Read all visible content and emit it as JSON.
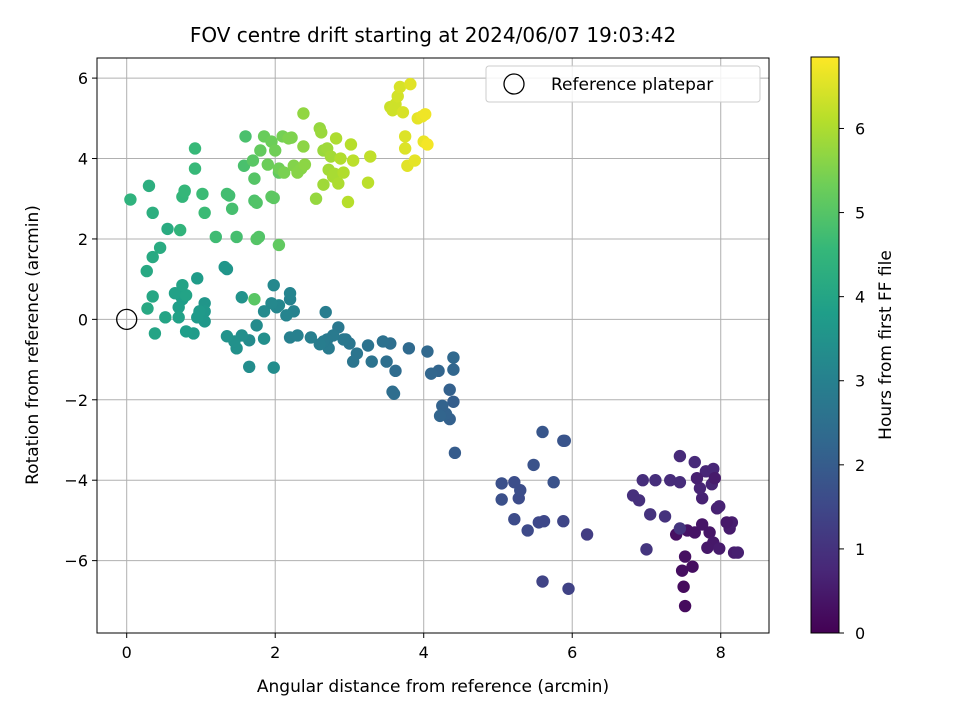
{
  "chart_data": {
    "type": "scatter",
    "title": "FOV centre drift starting at 2024/06/07 19:03:42",
    "xlabel": "Angular distance from reference (arcmin)",
    "ylabel": "Rotation from reference (arcmin)",
    "xlim": [
      -0.4,
      8.65
    ],
    "ylim": [
      -7.8,
      6.5
    ],
    "xticks": [
      0,
      2,
      4,
      6,
      8
    ],
    "yticks": [
      -6,
      -4,
      -2,
      0,
      2,
      4,
      6
    ],
    "grid": true,
    "legend": {
      "placement": "top-right",
      "entries": [
        "Reference platepar"
      ]
    },
    "reference_point": {
      "name": "Reference platepar",
      "x": 0,
      "y": 0
    },
    "colorbar": {
      "label": "Hours from first FF file",
      "range": [
        0,
        6.85
      ],
      "ticks": [
        0,
        1,
        2,
        3,
        4,
        5,
        6
      ],
      "colormap": "viridis",
      "colors": [
        "#440154",
        "#482878",
        "#3e4989",
        "#31688e",
        "#26828e",
        "#1f9e89",
        "#35b779",
        "#6ece58",
        "#b5de2b",
        "#fde725"
      ]
    },
    "points": [
      {
        "x": 7.52,
        "y": -7.13,
        "t": 0.2
      },
      {
        "x": 7.5,
        "y": -6.65,
        "t": 0.2
      },
      {
        "x": 7.48,
        "y": -6.25,
        "t": 0.25
      },
      {
        "x": 7.62,
        "y": -6.15,
        "t": 0.25
      },
      {
        "x": 7.52,
        "y": -5.9,
        "t": 0.3
      },
      {
        "x": 7.4,
        "y": -5.35,
        "t": 0.3
      },
      {
        "x": 7.55,
        "y": -5.25,
        "t": 0.35
      },
      {
        "x": 7.65,
        "y": -5.3,
        "t": 0.35
      },
      {
        "x": 7.75,
        "y": -5.1,
        "t": 0.4
      },
      {
        "x": 7.85,
        "y": -5.3,
        "t": 0.4
      },
      {
        "x": 7.9,
        "y": -5.55,
        "t": 0.45
      },
      {
        "x": 7.82,
        "y": -5.68,
        "t": 0.45
      },
      {
        "x": 7.98,
        "y": -5.7,
        "t": 0.5
      },
      {
        "x": 8.12,
        "y": -5.2,
        "t": 0.5
      },
      {
        "x": 8.15,
        "y": -5.05,
        "t": 0.55
      },
      {
        "x": 8.18,
        "y": -5.8,
        "t": 0.55
      },
      {
        "x": 8.23,
        "y": -5.8,
        "t": 0.6
      },
      {
        "x": 7.95,
        "y": -4.7,
        "t": 0.6
      },
      {
        "x": 7.98,
        "y": -4.65,
        "t": 0.65
      },
      {
        "x": 7.75,
        "y": -4.45,
        "t": 0.65
      },
      {
        "x": 7.72,
        "y": -4.2,
        "t": 0.7
      },
      {
        "x": 7.88,
        "y": -4.1,
        "t": 0.7
      },
      {
        "x": 7.8,
        "y": -3.78,
        "t": 0.75
      },
      {
        "x": 7.9,
        "y": -3.72,
        "t": 0.75
      },
      {
        "x": 7.65,
        "y": -3.55,
        "t": 0.8
      },
      {
        "x": 7.45,
        "y": -3.4,
        "t": 0.8
      },
      {
        "x": 7.45,
        "y": -4.05,
        "t": 0.85
      },
      {
        "x": 7.32,
        "y": -4.0,
        "t": 0.85
      },
      {
        "x": 7.12,
        "y": -4.0,
        "t": 0.9
      },
      {
        "x": 6.95,
        "y": -4.0,
        "t": 0.9
      },
      {
        "x": 6.82,
        "y": -4.38,
        "t": 0.95
      },
      {
        "x": 6.9,
        "y": -4.5,
        "t": 0.95
      },
      {
        "x": 7.05,
        "y": -4.85,
        "t": 1.0
      },
      {
        "x": 7.25,
        "y": -4.9,
        "t": 1.0
      },
      {
        "x": 7.0,
        "y": -5.72,
        "t": 1.05
      },
      {
        "x": 7.45,
        "y": -5.2,
        "t": 1.05
      },
      {
        "x": 7.68,
        "y": -3.95,
        "t": 0.6
      },
      {
        "x": 7.92,
        "y": -3.95,
        "t": 0.5
      },
      {
        "x": 8.08,
        "y": -5.05,
        "t": 0.45
      },
      {
        "x": 6.2,
        "y": -5.35,
        "t": 1.25
      },
      {
        "x": 5.95,
        "y": -6.7,
        "t": 1.35
      },
      {
        "x": 5.6,
        "y": -6.52,
        "t": 1.4
      },
      {
        "x": 5.88,
        "y": -5.02,
        "t": 1.45
      },
      {
        "x": 5.62,
        "y": -5.02,
        "t": 1.5
      },
      {
        "x": 5.55,
        "y": -5.05,
        "t": 1.5
      },
      {
        "x": 5.4,
        "y": -5.25,
        "t": 1.55
      },
      {
        "x": 5.22,
        "y": -4.97,
        "t": 1.6
      },
      {
        "x": 5.28,
        "y": -4.45,
        "t": 1.6
      },
      {
        "x": 5.3,
        "y": -4.25,
        "t": 1.65
      },
      {
        "x": 5.22,
        "y": -4.05,
        "t": 1.65
      },
      {
        "x": 5.05,
        "y": -4.08,
        "t": 1.7
      },
      {
        "x": 5.05,
        "y": -4.48,
        "t": 1.7
      },
      {
        "x": 5.48,
        "y": -3.62,
        "t": 1.75
      },
      {
        "x": 5.75,
        "y": -4.05,
        "t": 1.75
      },
      {
        "x": 5.88,
        "y": -3.02,
        "t": 1.8
      },
      {
        "x": 5.9,
        "y": -3.02,
        "t": 1.8
      },
      {
        "x": 5.6,
        "y": -2.8,
        "t": 1.85
      },
      {
        "x": 4.42,
        "y": -3.32,
        "t": 2.0
      },
      {
        "x": 4.4,
        "y": -2.05,
        "t": 2.05
      },
      {
        "x": 4.35,
        "y": -1.75,
        "t": 2.1
      },
      {
        "x": 4.35,
        "y": -2.48,
        "t": 2.1
      },
      {
        "x": 4.3,
        "y": -2.35,
        "t": 2.15
      },
      {
        "x": 4.25,
        "y": -2.15,
        "t": 2.15
      },
      {
        "x": 4.22,
        "y": -2.4,
        "t": 2.2
      },
      {
        "x": 4.2,
        "y": -1.28,
        "t": 2.2
      },
      {
        "x": 4.1,
        "y": -1.35,
        "t": 2.25
      },
      {
        "x": 4.4,
        "y": -1.25,
        "t": 2.25
      },
      {
        "x": 4.4,
        "y": -0.95,
        "t": 2.3
      },
      {
        "x": 4.05,
        "y": -0.8,
        "t": 2.3
      },
      {
        "x": 3.8,
        "y": -0.72,
        "t": 2.35
      },
      {
        "x": 3.62,
        "y": -1.28,
        "t": 2.4
      },
      {
        "x": 3.58,
        "y": -1.8,
        "t": 2.45
      },
      {
        "x": 3.6,
        "y": -1.85,
        "t": 2.45
      },
      {
        "x": 3.5,
        "y": -1.05,
        "t": 2.5
      },
      {
        "x": 3.55,
        "y": -0.6,
        "t": 2.5
      },
      {
        "x": 3.45,
        "y": -0.55,
        "t": 2.55
      },
      {
        "x": 3.3,
        "y": -1.05,
        "t": 2.6
      },
      {
        "x": 3.25,
        "y": -0.65,
        "t": 2.6
      },
      {
        "x": 3.1,
        "y": -0.85,
        "t": 2.65
      },
      {
        "x": 3.05,
        "y": -1.05,
        "t": 2.65
      },
      {
        "x": 3.0,
        "y": -0.6,
        "t": 2.7
      },
      {
        "x": 2.95,
        "y": -0.5,
        "t": 2.7
      },
      {
        "x": 2.92,
        "y": -0.5,
        "t": 2.75
      },
      {
        "x": 2.85,
        "y": -0.2,
        "t": 2.75
      },
      {
        "x": 2.78,
        "y": -0.4,
        "t": 2.8
      },
      {
        "x": 2.7,
        "y": -0.5,
        "t": 2.8
      },
      {
        "x": 2.72,
        "y": -0.72,
        "t": 2.85
      },
      {
        "x": 2.65,
        "y": -0.55,
        "t": 2.85
      },
      {
        "x": 2.6,
        "y": -0.62,
        "t": 2.9
      },
      {
        "x": 2.68,
        "y": 0.18,
        "t": 2.9
      },
      {
        "x": 2.48,
        "y": -0.45,
        "t": 2.95
      },
      {
        "x": 2.3,
        "y": -0.4,
        "t": 3.0
      },
      {
        "x": 2.2,
        "y": -0.45,
        "t": 3.0
      },
      {
        "x": 2.25,
        "y": 0.2,
        "t": 3.05
      },
      {
        "x": 2.2,
        "y": 0.5,
        "t": 3.05
      },
      {
        "x": 2.2,
        "y": 0.65,
        "t": 3.1
      },
      {
        "x": 2.15,
        "y": 0.1,
        "t": 3.1
      },
      {
        "x": 2.05,
        "y": 0.35,
        "t": 3.15
      },
      {
        "x": 2.02,
        "y": 0.3,
        "t": 3.15
      },
      {
        "x": 1.98,
        "y": 0.85,
        "t": 3.2
      },
      {
        "x": 1.95,
        "y": 0.4,
        "t": 3.2
      },
      {
        "x": 1.85,
        "y": 0.2,
        "t": 3.25
      },
      {
        "x": 1.75,
        "y": -0.15,
        "t": 3.3
      },
      {
        "x": 1.65,
        "y": -0.52,
        "t": 3.3
      },
      {
        "x": 1.65,
        "y": -1.18,
        "t": 3.35
      },
      {
        "x": 1.98,
        "y": -1.2,
        "t": 3.35
      },
      {
        "x": 1.85,
        "y": -0.48,
        "t": 3.4
      },
      {
        "x": 1.55,
        "y": -0.4,
        "t": 3.4
      },
      {
        "x": 1.48,
        "y": -0.72,
        "t": 3.45
      },
      {
        "x": 1.45,
        "y": -0.55,
        "t": 3.45
      },
      {
        "x": 1.35,
        "y": -0.42,
        "t": 3.5
      },
      {
        "x": 1.55,
        "y": 0.55,
        "t": 3.5
      },
      {
        "x": 1.35,
        "y": 1.25,
        "t": 3.55
      },
      {
        "x": 1.32,
        "y": 1.3,
        "t": 3.6
      },
      {
        "x": 1.05,
        "y": 0.4,
        "t": 3.6
      },
      {
        "x": 1.05,
        "y": 0.2,
        "t": 3.65
      },
      {
        "x": 1.05,
        "y": -0.05,
        "t": 3.65
      },
      {
        "x": 0.98,
        "y": 0.2,
        "t": 3.7
      },
      {
        "x": 0.95,
        "y": 0.05,
        "t": 3.7
      },
      {
        "x": 0.95,
        "y": 1.02,
        "t": 3.75
      },
      {
        "x": 0.9,
        "y": -0.35,
        "t": 3.75
      },
      {
        "x": 0.8,
        "y": -0.3,
        "t": 3.8
      },
      {
        "x": 0.75,
        "y": 0.5,
        "t": 3.8
      },
      {
        "x": 0.7,
        "y": 0.3,
        "t": 3.85
      },
      {
        "x": 0.72,
        "y": 0.6,
        "t": 3.85
      },
      {
        "x": 0.65,
        "y": 0.65,
        "t": 3.9
      },
      {
        "x": 0.7,
        "y": 0.05,
        "t": 3.9
      },
      {
        "x": 0.8,
        "y": 0.6,
        "t": 3.95
      },
      {
        "x": 0.75,
        "y": 0.85,
        "t": 3.95
      },
      {
        "x": 0.52,
        "y": 0.05,
        "t": 4.0
      },
      {
        "x": 0.38,
        "y": -0.35,
        "t": 4.0
      },
      {
        "x": 0.35,
        "y": 0.57,
        "t": 4.05
      },
      {
        "x": 0.28,
        "y": 0.27,
        "t": 4.1
      },
      {
        "x": 0.27,
        "y": 1.2,
        "t": 4.1
      },
      {
        "x": 0.35,
        "y": 1.55,
        "t": 4.15
      },
      {
        "x": 0.45,
        "y": 1.78,
        "t": 4.2
      },
      {
        "x": 0.55,
        "y": 2.25,
        "t": 4.2
      },
      {
        "x": 0.35,
        "y": 2.65,
        "t": 4.3
      },
      {
        "x": 0.3,
        "y": 3.32,
        "t": 4.3
      },
      {
        "x": 0.05,
        "y": 2.98,
        "t": 4.4
      },
      {
        "x": 0.72,
        "y": 2.22,
        "t": 4.45
      },
      {
        "x": 0.75,
        "y": 3.05,
        "t": 4.5
      },
      {
        "x": 0.78,
        "y": 3.2,
        "t": 4.5
      },
      {
        "x": 0.78,
        "y": 3.18,
        "t": 4.55
      },
      {
        "x": 0.92,
        "y": 3.75,
        "t": 4.6
      },
      {
        "x": 0.92,
        "y": 4.25,
        "t": 4.6
      },
      {
        "x": 1.02,
        "y": 3.12,
        "t": 4.65
      },
      {
        "x": 1.05,
        "y": 2.65,
        "t": 4.65
      },
      {
        "x": 1.2,
        "y": 2.05,
        "t": 4.7
      },
      {
        "x": 1.35,
        "y": 3.12,
        "t": 4.75
      },
      {
        "x": 1.38,
        "y": 3.08,
        "t": 4.75
      },
      {
        "x": 1.42,
        "y": 2.75,
        "t": 4.8
      },
      {
        "x": 1.48,
        "y": 2.05,
        "t": 4.8
      },
      {
        "x": 1.58,
        "y": 3.82,
        "t": 4.85
      },
      {
        "x": 1.6,
        "y": 4.55,
        "t": 4.85
      },
      {
        "x": 1.72,
        "y": 2.95,
        "t": 4.9
      },
      {
        "x": 1.75,
        "y": 2.9,
        "t": 4.95
      },
      {
        "x": 1.78,
        "y": 2.05,
        "t": 4.95
      },
      {
        "x": 1.75,
        "y": 2.0,
        "t": 5.0
      },
      {
        "x": 1.72,
        "y": 3.5,
        "t": 5.0
      },
      {
        "x": 1.7,
        "y": 3.95,
        "t": 5.05
      },
      {
        "x": 1.72,
        "y": 0.5,
        "t": 5.05
      },
      {
        "x": 1.95,
        "y": 3.05,
        "t": 5.1
      },
      {
        "x": 1.98,
        "y": 3.02,
        "t": 5.1
      },
      {
        "x": 2.05,
        "y": 1.85,
        "t": 5.15
      },
      {
        "x": 2.05,
        "y": 3.65,
        "t": 5.15
      },
      {
        "x": 1.8,
        "y": 4.2,
        "t": 5.2
      },
      {
        "x": 1.85,
        "y": 4.55,
        "t": 5.25
      },
      {
        "x": 1.9,
        "y": 3.85,
        "t": 5.3
      },
      {
        "x": 1.95,
        "y": 4.42,
        "t": 5.3
      },
      {
        "x": 2.0,
        "y": 4.2,
        "t": 5.35
      },
      {
        "x": 2.05,
        "y": 3.75,
        "t": 5.35
      },
      {
        "x": 2.1,
        "y": 4.55,
        "t": 5.4
      },
      {
        "x": 2.12,
        "y": 3.65,
        "t": 5.45
      },
      {
        "x": 2.18,
        "y": 4.5,
        "t": 5.5
      },
      {
        "x": 2.22,
        "y": 4.52,
        "t": 5.5
      },
      {
        "x": 2.25,
        "y": 3.82,
        "t": 5.55
      },
      {
        "x": 2.3,
        "y": 3.65,
        "t": 5.6
      },
      {
        "x": 2.35,
        "y": 3.75,
        "t": 5.6
      },
      {
        "x": 2.38,
        "y": 4.3,
        "t": 5.65
      },
      {
        "x": 2.4,
        "y": 3.85,
        "t": 5.65
      },
      {
        "x": 2.38,
        "y": 5.12,
        "t": 5.7
      },
      {
        "x": 2.55,
        "y": 3.0,
        "t": 5.75
      },
      {
        "x": 2.6,
        "y": 4.75,
        "t": 5.75
      },
      {
        "x": 2.62,
        "y": 4.65,
        "t": 5.8
      },
      {
        "x": 2.65,
        "y": 4.2,
        "t": 5.8
      },
      {
        "x": 2.65,
        "y": 3.35,
        "t": 5.85
      },
      {
        "x": 2.7,
        "y": 4.25,
        "t": 5.85
      },
      {
        "x": 2.72,
        "y": 3.72,
        "t": 5.9
      },
      {
        "x": 2.75,
        "y": 4.05,
        "t": 5.9
      },
      {
        "x": 2.78,
        "y": 3.55,
        "t": 5.95
      },
      {
        "x": 2.8,
        "y": 3.62,
        "t": 5.95
      },
      {
        "x": 2.82,
        "y": 4.5,
        "t": 6.0
      },
      {
        "x": 2.85,
        "y": 3.38,
        "t": 6.0
      },
      {
        "x": 2.88,
        "y": 4.0,
        "t": 6.05
      },
      {
        "x": 2.92,
        "y": 3.65,
        "t": 6.05
      },
      {
        "x": 2.98,
        "y": 2.92,
        "t": 6.1
      },
      {
        "x": 3.02,
        "y": 4.35,
        "t": 6.1
      },
      {
        "x": 3.05,
        "y": 3.95,
        "t": 6.15
      },
      {
        "x": 3.25,
        "y": 3.4,
        "t": 6.15
      },
      {
        "x": 3.28,
        "y": 4.05,
        "t": 6.2
      },
      {
        "x": 3.55,
        "y": 5.28,
        "t": 6.3
      },
      {
        "x": 3.58,
        "y": 5.2,
        "t": 6.35
      },
      {
        "x": 3.62,
        "y": 5.35,
        "t": 6.35
      },
      {
        "x": 3.65,
        "y": 5.55,
        "t": 6.4
      },
      {
        "x": 3.68,
        "y": 5.78,
        "t": 6.45
      },
      {
        "x": 3.72,
        "y": 5.15,
        "t": 6.45
      },
      {
        "x": 3.75,
        "y": 4.55,
        "t": 6.5
      },
      {
        "x": 3.75,
        "y": 4.25,
        "t": 6.5
      },
      {
        "x": 3.78,
        "y": 3.82,
        "t": 6.55
      },
      {
        "x": 3.82,
        "y": 5.85,
        "t": 6.55
      },
      {
        "x": 3.88,
        "y": 3.95,
        "t": 6.6
      },
      {
        "x": 3.92,
        "y": 5.0,
        "t": 6.6
      },
      {
        "x": 3.98,
        "y": 5.05,
        "t": 6.65
      },
      {
        "x": 4.0,
        "y": 4.42,
        "t": 6.65
      },
      {
        "x": 4.02,
        "y": 5.1,
        "t": 6.7
      },
      {
        "x": 4.05,
        "y": 4.35,
        "t": 6.75
      }
    ]
  }
}
